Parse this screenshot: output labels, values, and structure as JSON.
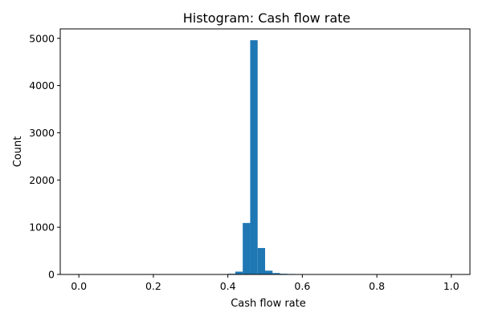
{
  "chart_data": {
    "type": "bar",
    "title": "Histogram:  Cash flow rate",
    "xlabel": "Cash flow rate",
    "ylabel": "Count",
    "xlim": [
      -0.05,
      1.05
    ],
    "ylim": [
      0,
      5200
    ],
    "xticks": [
      0.0,
      0.2,
      0.4,
      0.6,
      0.8,
      1.0
    ],
    "xtick_labels": [
      "0.0",
      "0.2",
      "0.4",
      "0.6",
      "0.8",
      "1.0"
    ],
    "yticks": [
      0,
      1000,
      2000,
      3000,
      4000,
      5000
    ],
    "ytick_labels": [
      "0",
      "1000",
      "2000",
      "3000",
      "4000",
      "5000"
    ],
    "grid": false,
    "bin_width": 0.02,
    "bins": [
      {
        "x0": 0.38,
        "x1": 0.4,
        "count": 5
      },
      {
        "x0": 0.4,
        "x1": 0.42,
        "count": 15
      },
      {
        "x0": 0.42,
        "x1": 0.44,
        "count": 60
      },
      {
        "x0": 0.44,
        "x1": 0.46,
        "count": 1090
      },
      {
        "x0": 0.46,
        "x1": 0.48,
        "count": 4960
      },
      {
        "x0": 0.48,
        "x1": 0.5,
        "count": 560
      },
      {
        "x0": 0.5,
        "x1": 0.52,
        "count": 80
      },
      {
        "x0": 0.52,
        "x1": 0.54,
        "count": 30
      },
      {
        "x0": 0.54,
        "x1": 0.56,
        "count": 15
      },
      {
        "x0": 0.56,
        "x1": 0.58,
        "count": 10
      },
      {
        "x0": 0.58,
        "x1": 0.6,
        "count": 8
      }
    ],
    "bar_color": "#1f77b4"
  }
}
